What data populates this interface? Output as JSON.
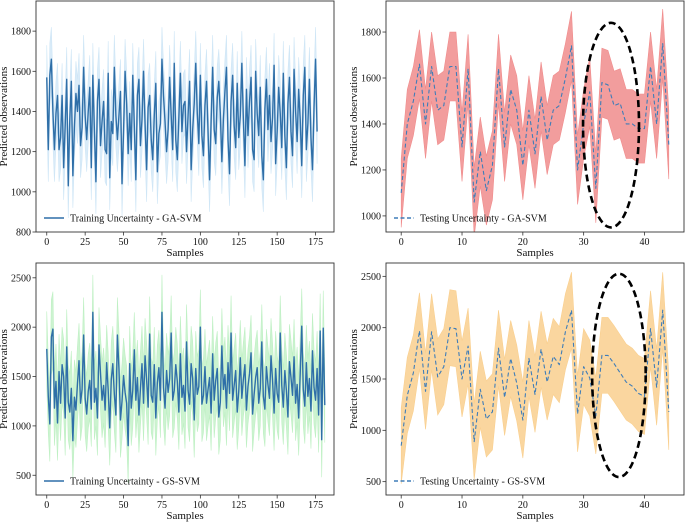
{
  "colors": {
    "train_line": "#2f6fa8",
    "train_band_ga": "#cfe6f6",
    "train_band_gs": "#bff0c4",
    "test_line": "#3f7db8",
    "test_band_ga": "#f08c8c",
    "test_band_gs": "#f9cf8e",
    "ellipse": "#000000"
  },
  "chart_data": [
    {
      "id": "ga-train",
      "type": "line",
      "title": "",
      "xlabel": "Samples",
      "ylabel": "Predicted observations",
      "xlim": [
        -7,
        187
      ],
      "ylim": [
        800,
        1950
      ],
      "xticks": [
        0,
        25,
        50,
        75,
        100,
        125,
        150,
        175
      ],
      "yticks": [
        800,
        1000,
        1200,
        1400,
        1600,
        1800
      ],
      "band_half_width": 160,
      "line_style": "solid",
      "legend": "Training Uncertainty - GA-SVM",
      "legend_position": "lower-left",
      "series": [
        {
          "name": "Training Uncertainty - GA-SVM",
          "values": [
            1570,
            1210,
            1580,
            1660,
            1400,
            1210,
            1390,
            1480,
            1210,
            1270,
            1480,
            1120,
            1330,
            1560,
            1030,
            1360,
            1550,
            1080,
            1320,
            1490,
            1400,
            1530,
            1230,
            1320,
            1620,
            1380,
            1260,
            1400,
            1520,
            1120,
            1580,
            1310,
            1050,
            1450,
            1560,
            1230,
            1350,
            1450,
            1210,
            1190,
            1590,
            1070,
            1350,
            1290,
            1620,
            1380,
            1260,
            1380,
            1500,
            1040,
            1300,
            1600,
            1440,
            1190,
            1390,
            1210,
            1580,
            1330,
            1060,
            1480,
            1560,
            1230,
            1360,
            1600,
            1340,
            1110,
            1420,
            1480,
            1260,
            1160,
            1380,
            1540,
            1100,
            1290,
            1340,
            1660,
            1480,
            1350,
            1200,
            1310,
            1570,
            1380,
            1210,
            1640,
            1260,
            1160,
            1370,
            1590,
            1300,
            1430,
            1450,
            1200,
            1380,
            1550,
            1110,
            1310,
            1440,
            1640,
            1390,
            1240,
            1580,
            1280,
            1180,
            1430,
            1550,
            1300,
            1060,
            1350,
            1620,
            1310,
            1240,
            1470,
            1550,
            1390,
            1150,
            1360,
            1500,
            1620,
            1260,
            1090,
            1450,
            1580,
            1330,
            1220,
            1540,
            1270,
            1380,
            1640,
            1360,
            1130,
            1510,
            1280,
            1450,
            1570,
            1210,
            1160,
            1600,
            1390,
            1280,
            1520,
            1180,
            1060,
            1410,
            1560,
            1310,
            1480,
            1250,
            1370,
            1630,
            1140,
            1300,
            1520,
            1390,
            1220,
            1590,
            1280,
            1120,
            1440,
            1570,
            1300,
            1180,
            1610,
            1400,
            1250,
            1510,
            1360,
            1130,
            1480,
            1620,
            1210,
            1340,
            1560,
            1270,
            1110,
            1420,
            1660,
            1300
          ]
        }
      ]
    },
    {
      "id": "ga-test",
      "type": "line",
      "title": "",
      "xlabel": "Samples",
      "ylabel": "Predicted observations",
      "xlim": [
        -2.5,
        46.5
      ],
      "ylim": [
        930,
        1935
      ],
      "xticks": [
        0,
        10,
        20,
        30,
        40
      ],
      "yticks": [
        1000,
        1200,
        1400,
        1600,
        1800
      ],
      "band_half_width": 150,
      "line_style": "dashed",
      "legend": "Testing Uncertainty - GA-SVM",
      "legend_position": "lower-left",
      "annotation": {
        "type": "dashed-ellipse",
        "center_x": 34.5,
        "center_y": 1395,
        "rx": 4.6,
        "ry": 445
      },
      "series": [
        {
          "name": "Testing Uncertainty - GA-SVM",
          "values": [
            1100,
            1400,
            1500,
            1660,
            1400,
            1650,
            1460,
            1480,
            1650,
            1650,
            1300,
            1640,
            1060,
            1280,
            1110,
            1220,
            1640,
            1300,
            1550,
            1460,
            1220,
            1460,
            1270,
            1520,
            1330,
            1460,
            1480,
            1600,
            1740,
            1200,
            1400,
            1540,
            1120,
            1580,
            1570,
            1480,
            1490,
            1400,
            1400,
            1380,
            1380,
            1650,
            1400,
            1750,
            1310
          ]
        }
      ]
    },
    {
      "id": "gs-train",
      "type": "line",
      "title": "",
      "xlabel": "Samples",
      "ylabel": "Predicted observations",
      "xlim": [
        -7,
        187
      ],
      "ylim": [
        300,
        2650
      ],
      "xticks": [
        0,
        25,
        50,
        75,
        100,
        125,
        150,
        175
      ],
      "yticks": [
        500,
        1000,
        1500,
        2000,
        2500
      ],
      "band_half_width": 380,
      "line_style": "solid",
      "legend": "Training Uncertainty - GS-SVM",
      "legend_position": "lower-left",
      "series": [
        {
          "name": "Training Uncertainty - GS-SVM",
          "values": [
            1780,
            1300,
            1020,
            1900,
            1980,
            1180,
            1450,
            1030,
            1550,
            1230,
            1620,
            1500,
            1080,
            1800,
            1240,
            1140,
            1380,
            850,
            1290,
            1160,
            1430,
            1660,
            1230,
            1370,
            1920,
            1280,
            1120,
            1350,
            1460,
            1170,
            2150,
            1240,
            1380,
            1080,
            1820,
            1530,
            1260,
            1410,
            1160,
            1640,
            1360,
            980,
            1470,
            1630,
            1320,
            1110,
            1920,
            1580,
            1060,
            1250,
            1510,
            1340,
            1230,
            800,
            1630,
            1180,
            1360,
            1770,
            1260,
            1490,
            1110,
            1380,
            1630,
            1230,
            1710,
            1470,
            1190,
            1930,
            1310,
            1240,
            1620,
            1080,
            1440,
            1590,
            1260,
            2150,
            1390,
            1180,
            1560,
            1340,
            1480,
            1940,
            1260,
            1360,
            1620,
            1450,
            1140,
            1730,
            1290,
            1410,
            1150,
            1850,
            1360,
            1220,
            1630,
            1480,
            1060,
            1580,
            1320,
            1400,
            2000,
            1220,
            1310,
            1600,
            1230,
            1370,
            1490,
            1130,
            1730,
            1260,
            1460,
            1580,
            1090,
            1240,
            1810,
            1370,
            1520,
            1180,
            1640,
            1330,
            1940,
            1260,
            1410,
            1560,
            1140,
            1350,
            1690,
            1280,
            1470,
            1620,
            1160,
            1400,
            1530,
            1740,
            1120,
            1320,
            1490,
            1590,
            1230,
            1380,
            1850,
            1300,
            1170,
            1600,
            1420,
            1280,
            1710,
            1460,
            1130,
            1580,
            1330,
            1240,
            1940,
            1410,
            1190,
            1560,
            1360,
            1090,
            1650,
            1490,
            1310,
            1700,
            1230,
            1420,
            1080,
            1530,
            2010,
            1370,
            1200,
            1640,
            1300,
            1480,
            1150,
            1760,
            1390,
            1260,
            1580,
            1110,
            1960,
            860,
            1990,
            1210
          ]
        }
      ]
    },
    {
      "id": "gs-test",
      "type": "line",
      "title": "",
      "xlabel": "Samples",
      "ylabel": "Predicted observations",
      "xlim": [
        -2.5,
        46.5
      ],
      "ylim": [
        370,
        2630
      ],
      "xticks": [
        0,
        10,
        20,
        30,
        40
      ],
      "yticks": [
        500,
        1000,
        1500,
        2000,
        2500
      ],
      "band_half_width": 370,
      "line_style": "dashed",
      "legend": "Testing Uncertainty - GS-SVM",
      "legend_position": "lower-left",
      "annotation": {
        "type": "dashed-ellipse",
        "center_x": 35.8,
        "center_y": 1535,
        "rx": 4.4,
        "ry": 990
      },
      "series": [
        {
          "name": "Testing Uncertainty - GS-SVM",
          "values": [
            850,
            1340,
            1560,
            1970,
            1380,
            1960,
            1520,
            1620,
            2000,
            1990,
            1500,
            1820,
            890,
            1400,
            1110,
            1180,
            1800,
            1320,
            1700,
            1460,
            1100,
            1700,
            1350,
            1790,
            1470,
            1720,
            1640,
            1960,
            2170,
            1160,
            1620,
            1510,
            1140,
            1730,
            1730,
            1650,
            1560,
            1470,
            1430,
            1360,
            1330,
            1990,
            1420,
            2170,
            1180
          ]
        }
      ]
    }
  ]
}
